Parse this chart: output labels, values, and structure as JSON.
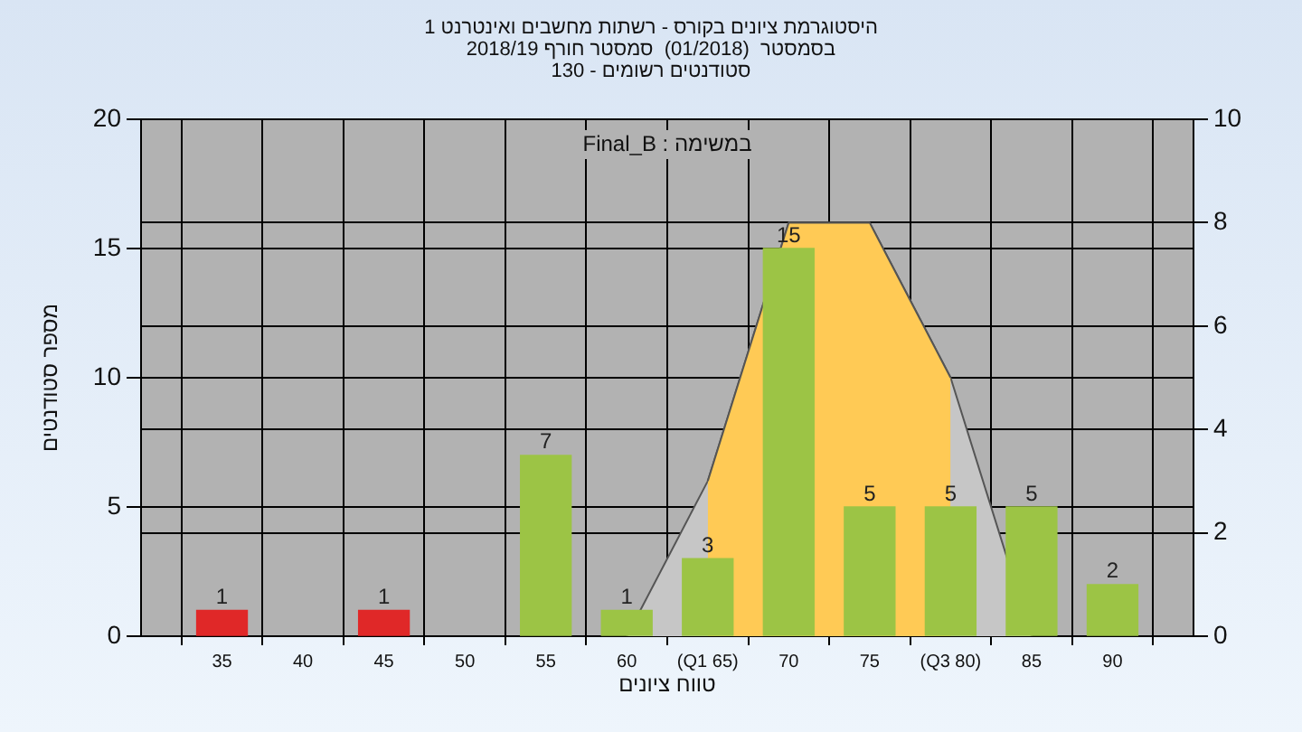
{
  "chart_data": {
    "type": "bar",
    "title": "היסטוגרמת ציונים בקורס - רשתות מחשבים ואינטרנט 1",
    "subtitle": "בסמסטר  (01/2018)  סמסטר חורף 2018/19\nסטודנטים רשומים - 130",
    "xlabel": "טווח ציונים",
    "ylabel": "מספר סטודנטים",
    "annotations": [
      "במשימה : Final_B"
    ],
    "series": [
      {
        "x": [
          35,
          45,
          55,
          60,
          65,
          70,
          75,
          80,
          85,
          90
        ],
        "values": [
          1,
          1,
          7,
          1,
          3,
          15,
          5,
          5,
          5,
          2
        ],
        "value_labels": [
          "1",
          "1",
          "7",
          "1",
          "3",
          "15",
          "5",
          "5",
          "5",
          "2"
        ],
        "colors": [
          "#e02828",
          "#e02828",
          "#9cc445",
          "#9cc445",
          "#9cc445",
          "#9cc445",
          "#9cc445",
          "#9cc445",
          "#9cc445",
          "#9cc445"
        ]
      },
      {
        "type": "area",
        "axis": "y2",
        "color": "#c6c6c6",
        "x": [
          60,
          65,
          70,
          75,
          80,
          85
        ],
        "values": [
          0,
          3,
          8,
          8,
          5,
          0
        ]
      },
      {
        "type": "area",
        "axis": "y2",
        "color": "#ffca55",
        "x": [
          65,
          70,
          75,
          80
        ],
        "values": [
          3,
          8,
          8,
          5
        ]
      }
    ],
    "xlim": [
      30,
      95
    ],
    "xticks": [
      35,
      40,
      45,
      50,
      55,
      60,
      {
        "value": 65,
        "label": "(Q1 65)"
      },
      70,
      75,
      {
        "value": 80,
        "label": "(Q3 80)"
      },
      85,
      90
    ],
    "ylim": [
      0,
      20
    ],
    "yticks": [
      0,
      5,
      10,
      15,
      20
    ],
    "y2lim": [
      0,
      10
    ],
    "y2ticks": [
      0,
      2,
      4,
      6,
      8,
      10
    ],
    "grid": true,
    "legend": false
  }
}
